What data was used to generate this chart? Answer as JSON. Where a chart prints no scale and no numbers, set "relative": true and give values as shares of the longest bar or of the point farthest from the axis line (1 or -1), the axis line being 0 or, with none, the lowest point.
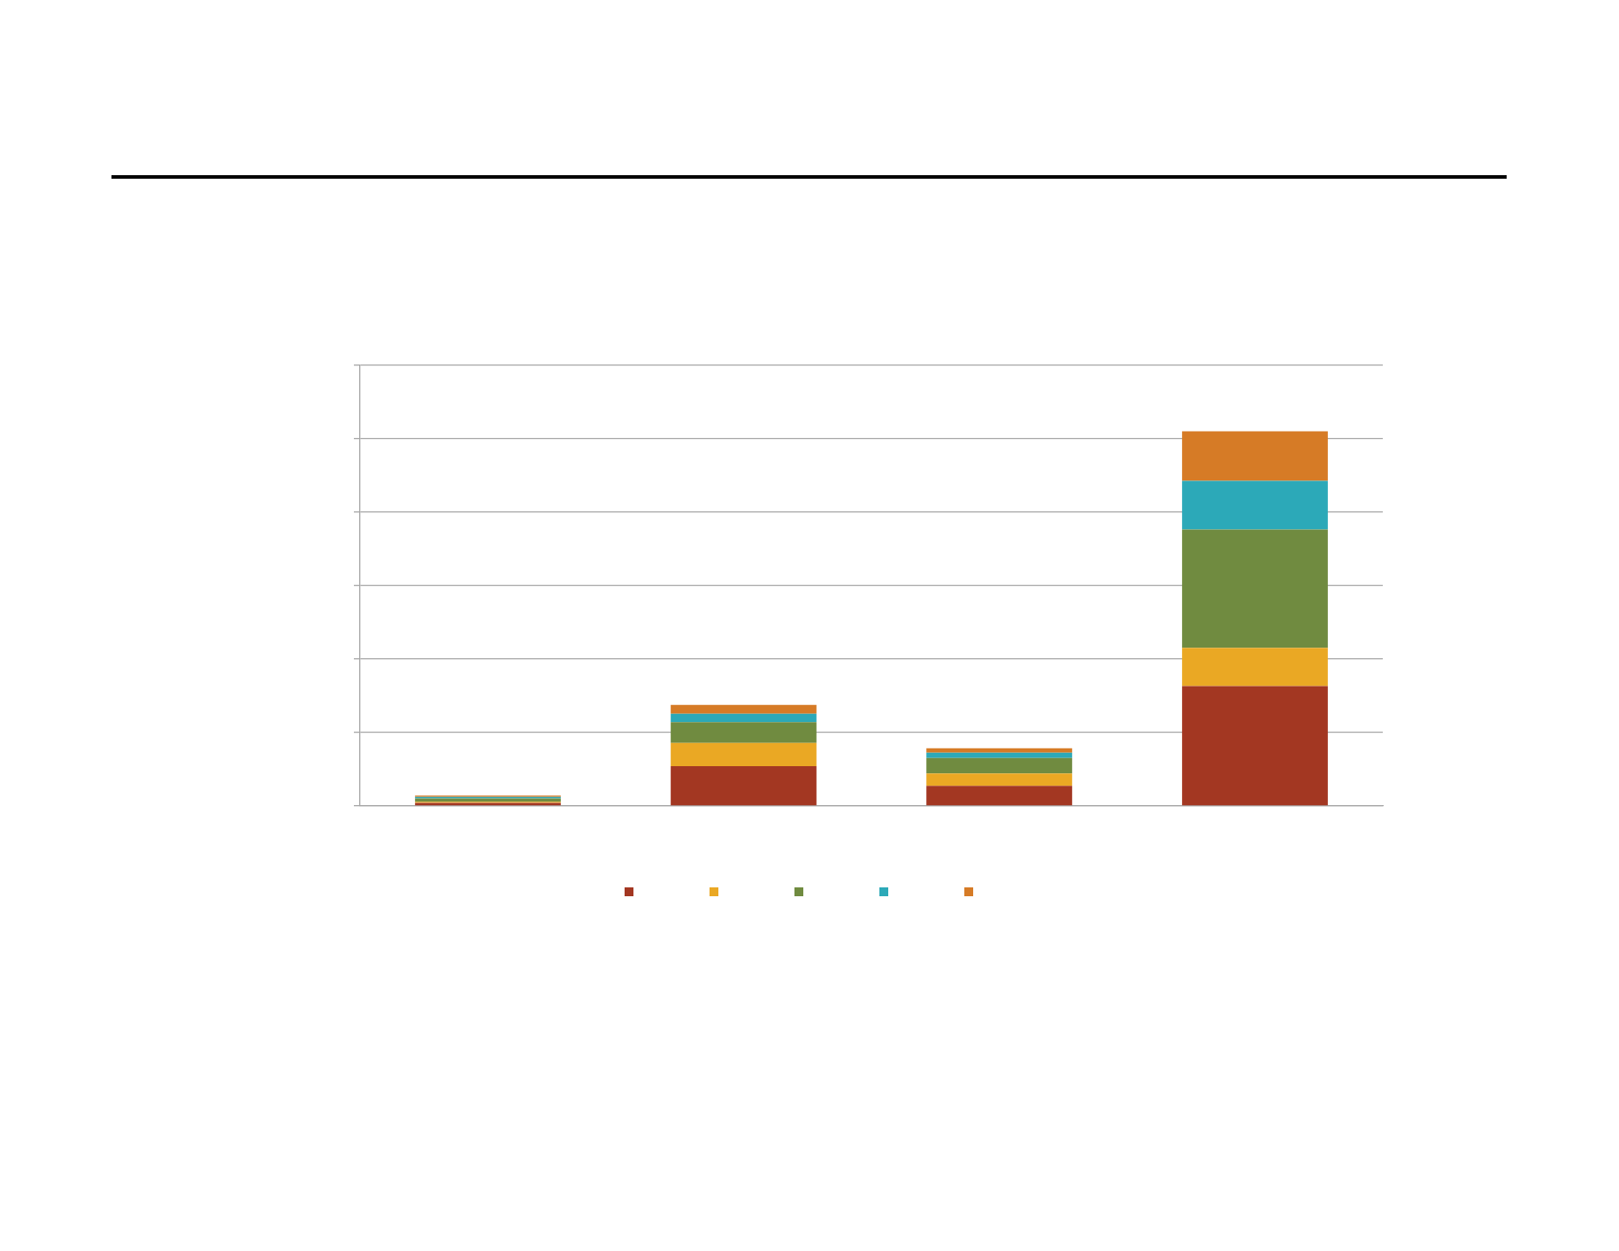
{
  "chart_data": {
    "type": "bar",
    "stacked": true,
    "relative": true,
    "grid": "y",
    "categories": [
      null,
      null,
      null,
      null
    ],
    "series": [
      {
        "color": "#a33722",
        "values": [
          0.008,
          0.106,
          0.054,
          0.32
        ]
      },
      {
        "color": "#eaa824",
        "values": [
          0.003,
          0.062,
          0.033,
          0.102
        ]
      },
      {
        "color": "#708b40",
        "values": [
          0.009,
          0.056,
          0.041,
          0.316
        ]
      },
      {
        "color": "#2ca9b8",
        "values": [
          0.004,
          0.022,
          0.014,
          0.13
        ]
      },
      {
        "color": "#d67b26",
        "values": [
          0.004,
          0.024,
          0.012,
          0.132
        ]
      }
    ]
  }
}
